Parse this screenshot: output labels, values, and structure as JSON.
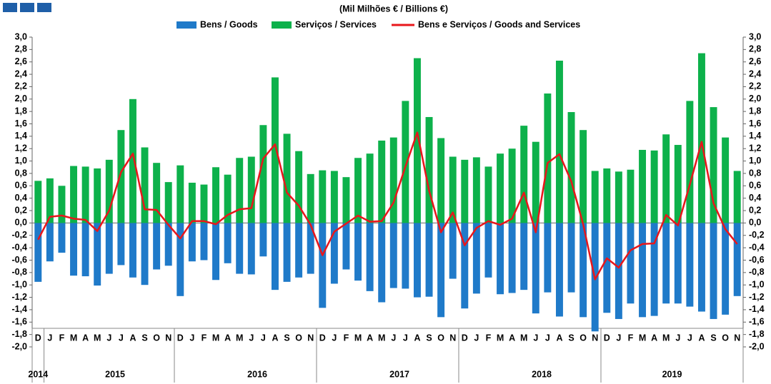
{
  "chart_data": {
    "type": "bar_line",
    "title": "(Mil Milhões € / Billions €)",
    "categories": [
      "D",
      "J",
      "F",
      "M",
      "A",
      "M",
      "J",
      "J",
      "A",
      "S",
      "O",
      "N",
      "D",
      "J",
      "F",
      "M",
      "A",
      "M",
      "J",
      "J",
      "A",
      "S",
      "O",
      "N",
      "D",
      "J",
      "F",
      "M",
      "A",
      "M",
      "J",
      "J",
      "A",
      "S",
      "O",
      "N",
      "D",
      "J",
      "F",
      "M",
      "A",
      "M",
      "J",
      "J",
      "A",
      "S",
      "O",
      "N",
      "D",
      "J",
      "F",
      "M",
      "A",
      "M",
      "J",
      "J",
      "A",
      "S",
      "O",
      "N"
    ],
    "year_labels": [
      "2014",
      null,
      null,
      null,
      null,
      null,
      "2015",
      null,
      null,
      null,
      null,
      null,
      null,
      null,
      null,
      null,
      null,
      null,
      "2016",
      null,
      null,
      null,
      null,
      null,
      null,
      null,
      null,
      null,
      null,
      null,
      "2017",
      null,
      null,
      null,
      null,
      null,
      null,
      null,
      null,
      null,
      null,
      null,
      "2018",
      null,
      null,
      null,
      null,
      null,
      null,
      null,
      null,
      null,
      null,
      "2019",
      null,
      null,
      null,
      null,
      null,
      null
    ],
    "series": [
      {
        "name": "Bens / Goods",
        "type": "bar",
        "color": "#1f7ac9",
        "values": [
          -0.95,
          -0.62,
          -0.48,
          -0.85,
          -0.86,
          -1.01,
          -0.82,
          -0.68,
          -0.88,
          -1.0,
          -0.75,
          -0.69,
          -1.18,
          -0.62,
          -0.6,
          -0.92,
          -0.65,
          -0.82,
          -0.83,
          -0.54,
          -1.08,
          -0.95,
          -0.88,
          -0.82,
          -1.37,
          -0.98,
          -0.75,
          -0.93,
          -1.1,
          -1.28,
          -1.05,
          -1.06,
          -1.2,
          -1.19,
          -1.52,
          -0.9,
          -1.38,
          -1.14,
          -0.88,
          -1.15,
          -1.13,
          -1.08,
          -1.46,
          -1.12,
          -1.51,
          -1.12,
          -1.52,
          -1.75,
          -1.45,
          -1.55,
          -1.3,
          -1.52,
          -1.5,
          -1.3,
          -1.3,
          -1.35,
          -1.43,
          -1.55,
          -1.48,
          -1.18
        ]
      },
      {
        "name": "Serviços / Services",
        "type": "bar",
        "color": "#0db14b",
        "values": [
          0.68,
          0.72,
          0.6,
          0.92,
          0.91,
          0.88,
          1.02,
          1.5,
          2.0,
          1.22,
          0.97,
          0.66,
          0.93,
          0.65,
          0.62,
          0.9,
          0.78,
          1.05,
          1.07,
          1.58,
          2.35,
          1.44,
          1.16,
          0.79,
          0.85,
          0.84,
          0.74,
          1.05,
          1.12,
          1.33,
          1.38,
          1.97,
          2.66,
          1.71,
          1.37,
          1.07,
          1.02,
          1.06,
          0.91,
          1.12,
          1.2,
          1.57,
          1.31,
          2.09,
          2.62,
          1.79,
          1.5,
          0.84,
          0.88,
          0.83,
          0.86,
          1.18,
          1.17,
          1.43,
          1.26,
          1.97,
          2.74,
          1.87,
          1.38,
          0.84
        ]
      },
      {
        "name": "Bens e Serviços  / Goods and Services",
        "type": "line",
        "color": "#e8161b",
        "values": [
          -0.27,
          0.1,
          0.12,
          0.07,
          0.05,
          -0.13,
          0.2,
          0.82,
          1.12,
          0.22,
          0.21,
          -0.03,
          -0.25,
          0.03,
          0.03,
          -0.02,
          0.13,
          0.22,
          0.24,
          1.04,
          1.27,
          0.49,
          0.28,
          -0.03,
          -0.52,
          -0.14,
          -0.01,
          0.12,
          0.02,
          0.03,
          0.33,
          0.91,
          1.46,
          0.52,
          -0.15,
          0.17,
          -0.36,
          -0.08,
          0.03,
          -0.03,
          0.07,
          0.49,
          -0.15,
          0.97,
          1.11,
          0.67,
          -0.02,
          -0.91,
          -0.57,
          -0.72,
          -0.44,
          -0.34,
          -0.33,
          0.13,
          -0.04,
          0.62,
          1.31,
          0.32,
          -0.1,
          -0.34
        ]
      }
    ],
    "ylim": [
      -2.0,
      3.0
    ],
    "yticks": [
      {
        "value": -2.0,
        "label": "-2,0"
      },
      {
        "value": -1.8,
        "label": "-1,8"
      },
      {
        "value": -1.6,
        "label": "-1,6"
      },
      {
        "value": -1.4,
        "label": "-1,4"
      },
      {
        "value": -1.2,
        "label": "-1,2"
      },
      {
        "value": -1.0,
        "label": "-1,0"
      },
      {
        "value": -0.8,
        "label": "-0,8"
      },
      {
        "value": -0.6,
        "label": "-0,6"
      },
      {
        "value": -0.4,
        "label": "-0,4"
      },
      {
        "value": -0.2,
        "label": "-0,2"
      },
      {
        "value": 0.0,
        "label": "0,0"
      },
      {
        "value": 0.2,
        "label": "0,2"
      },
      {
        "value": 0.4,
        "label": "0,4"
      },
      {
        "value": 0.6,
        "label": "0,6"
      },
      {
        "value": 0.8,
        "label": "0,8"
      },
      {
        "value": 1.0,
        "label": "1,0"
      },
      {
        "value": 1.2,
        "label": "1,2"
      },
      {
        "value": 1.4,
        "label": "1,4"
      },
      {
        "value": 1.6,
        "label": "1,6"
      },
      {
        "value": 1.8,
        "label": "1,8"
      },
      {
        "value": 2.0,
        "label": "2,0"
      },
      {
        "value": 2.2,
        "label": "2,2"
      },
      {
        "value": 2.4,
        "label": "2,4"
      },
      {
        "value": 2.6,
        "label": "2,6"
      },
      {
        "value": 2.8,
        "label": "2,8"
      },
      {
        "value": 3.0,
        "label": "3,0"
      }
    ],
    "grid": false
  }
}
